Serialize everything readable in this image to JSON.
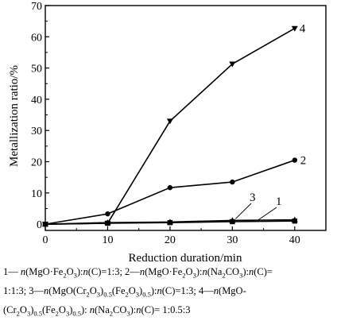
{
  "chart_data": {
    "type": "line",
    "xlabel": "Reduction duration/min",
    "ylabel": "Metallization ratio/%",
    "xlim": [
      0,
      45
    ],
    "ylim": [
      -2,
      70
    ],
    "x_ticks": [
      0,
      10,
      20,
      30,
      40
    ],
    "y_ticks": [
      0,
      10,
      20,
      30,
      40,
      50,
      60,
      70
    ],
    "grid": false,
    "series": [
      {
        "name": "1",
        "marker": "square",
        "x": [
          0,
          10,
          20,
          30,
          40
        ],
        "values": [
          0,
          0.3,
          0.5,
          0.8,
          1.0
        ]
      },
      {
        "name": "2",
        "marker": "circle",
        "x": [
          0,
          10,
          20,
          30,
          40
        ],
        "values": [
          0,
          3.3,
          11.7,
          13.5,
          20.5
        ]
      },
      {
        "name": "3",
        "marker": "triangle-up",
        "x": [
          0,
          10,
          20,
          30,
          40
        ],
        "values": [
          0,
          0.5,
          0.7,
          1.2,
          1.4
        ]
      },
      {
        "name": "4",
        "marker": "triangle-down",
        "x": [
          0,
          10,
          20,
          30,
          40
        ],
        "values": [
          0,
          0.3,
          33.0,
          51.3,
          62.7
        ]
      }
    ]
  },
  "caption": {
    "line1": [
      {
        "t": "1— ",
        "s": ""
      },
      {
        "t": "n",
        "s": "i"
      },
      {
        "t": "(MgO·Fe",
        "s": ""
      },
      {
        "t": "2",
        "s": "sub"
      },
      {
        "t": "O",
        "s": ""
      },
      {
        "t": "3",
        "s": "sub"
      },
      {
        "t": "):",
        "s": ""
      },
      {
        "t": "n",
        "s": "i"
      },
      {
        "t": "(C)=1:3;  2—",
        "s": ""
      },
      {
        "t": "n",
        "s": "i"
      },
      {
        "t": "(MgO·Fe",
        "s": ""
      },
      {
        "t": "2",
        "s": "sub"
      },
      {
        "t": "O",
        "s": ""
      },
      {
        "t": "3",
        "s": "sub"
      },
      {
        "t": "):",
        "s": ""
      },
      {
        "t": "n",
        "s": "i"
      },
      {
        "t": "(Na",
        "s": ""
      },
      {
        "t": "2",
        "s": "sub"
      },
      {
        "t": "CO",
        "s": ""
      },
      {
        "t": "3",
        "s": "sub"
      },
      {
        "t": "):",
        "s": ""
      },
      {
        "t": "n",
        "s": "i"
      },
      {
        "t": "(C)=",
        "s": ""
      }
    ],
    "line2": [
      {
        "t": "1:1:3;  3—",
        "s": ""
      },
      {
        "t": "n",
        "s": "i"
      },
      {
        "t": "(MgO(Cr",
        "s": ""
      },
      {
        "t": "2",
        "s": "sub"
      },
      {
        "t": "O",
        "s": ""
      },
      {
        "t": "3",
        "s": "sub"
      },
      {
        "t": ")",
        "s": ""
      },
      {
        "t": "0.5",
        "s": "sub"
      },
      {
        "t": "(Fe",
        "s": ""
      },
      {
        "t": "2",
        "s": "sub"
      },
      {
        "t": "O",
        "s": ""
      },
      {
        "t": "3",
        "s": "sub"
      },
      {
        "t": ")",
        "s": ""
      },
      {
        "t": "0.5",
        "s": "sub"
      },
      {
        "t": "):",
        "s": ""
      },
      {
        "t": "n",
        "s": "i"
      },
      {
        "t": "(C)=1:3;  4—",
        "s": ""
      },
      {
        "t": "n",
        "s": "i"
      },
      {
        "t": "(MgO-",
        "s": ""
      }
    ],
    "line3": [
      {
        "t": "(Cr",
        "s": ""
      },
      {
        "t": "2",
        "s": "sub"
      },
      {
        "t": "O",
        "s": ""
      },
      {
        "t": "3",
        "s": "sub"
      },
      {
        "t": ")",
        "s": ""
      },
      {
        "t": "0.5",
        "s": "sub"
      },
      {
        "t": "(Fe",
        "s": ""
      },
      {
        "t": "2",
        "s": "sub"
      },
      {
        "t": "O",
        "s": ""
      },
      {
        "t": "3",
        "s": "sub"
      },
      {
        "t": ")",
        "s": ""
      },
      {
        "t": "0.5",
        "s": "sub"
      },
      {
        "t": "): ",
        "s": ""
      },
      {
        "t": "n",
        "s": "i"
      },
      {
        "t": "(Na",
        "s": ""
      },
      {
        "t": "2",
        "s": "sub"
      },
      {
        "t": "CO",
        "s": ""
      },
      {
        "t": "3",
        "s": "sub"
      },
      {
        "t": "):",
        "s": ""
      },
      {
        "t": "n",
        "s": "i"
      },
      {
        "t": "(C)= 1:0.5:3",
        "s": ""
      }
    ]
  }
}
